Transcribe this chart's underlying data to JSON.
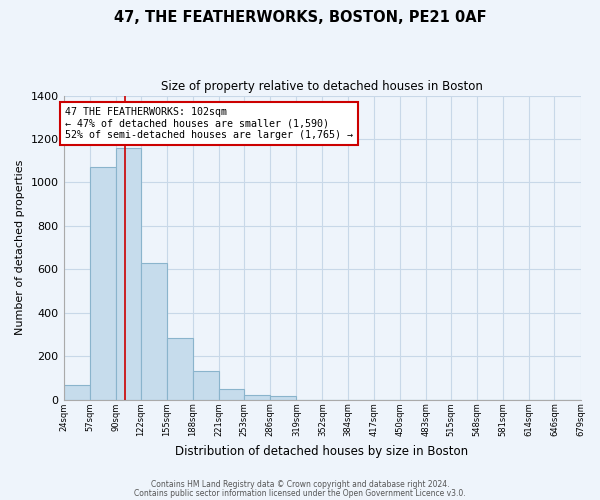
{
  "title": "47, THE FEATHERWORKS, BOSTON, PE21 0AF",
  "subtitle": "Size of property relative to detached houses in Boston",
  "xlabel": "Distribution of detached houses by size in Boston",
  "ylabel": "Number of detached properties",
  "bin_edges": [
    24,
    57,
    90,
    122,
    155,
    188,
    221,
    253,
    286,
    319,
    352,
    384,
    417,
    450,
    483,
    515,
    548,
    581,
    614,
    646,
    679
  ],
  "counts": [
    65,
    1070,
    1160,
    630,
    285,
    130,
    48,
    20,
    15,
    0,
    0,
    0,
    0,
    0,
    0,
    0,
    0,
    0,
    0,
    0
  ],
  "bar_color": "#c6dcec",
  "bar_edge_color": "#8ab4cc",
  "vline_x": 102,
  "vline_color": "#cc0000",
  "annotation_text": "47 THE FEATHERWORKS: 102sqm\n← 47% of detached houses are smaller (1,590)\n52% of semi-detached houses are larger (1,765) →",
  "annotation_box_color": "white",
  "annotation_box_edge": "#cc0000",
  "ylim": [
    0,
    1400
  ],
  "yticks": [
    0,
    200,
    400,
    600,
    800,
    1000,
    1200,
    1400
  ],
  "tick_labels": [
    "24sqm",
    "57sqm",
    "90sqm",
    "122sqm",
    "155sqm",
    "188sqm",
    "221sqm",
    "253sqm",
    "286sqm",
    "319sqm",
    "352sqm",
    "384sqm",
    "417sqm",
    "450sqm",
    "483sqm",
    "515sqm",
    "548sqm",
    "581sqm",
    "614sqm",
    "646sqm",
    "679sqm"
  ],
  "footer_line1": "Contains HM Land Registry data © Crown copyright and database right 2024.",
  "footer_line2": "Contains public sector information licensed under the Open Government Licence v3.0.",
  "bg_color": "#eef4fb",
  "grid_color": "#c8d8e8"
}
